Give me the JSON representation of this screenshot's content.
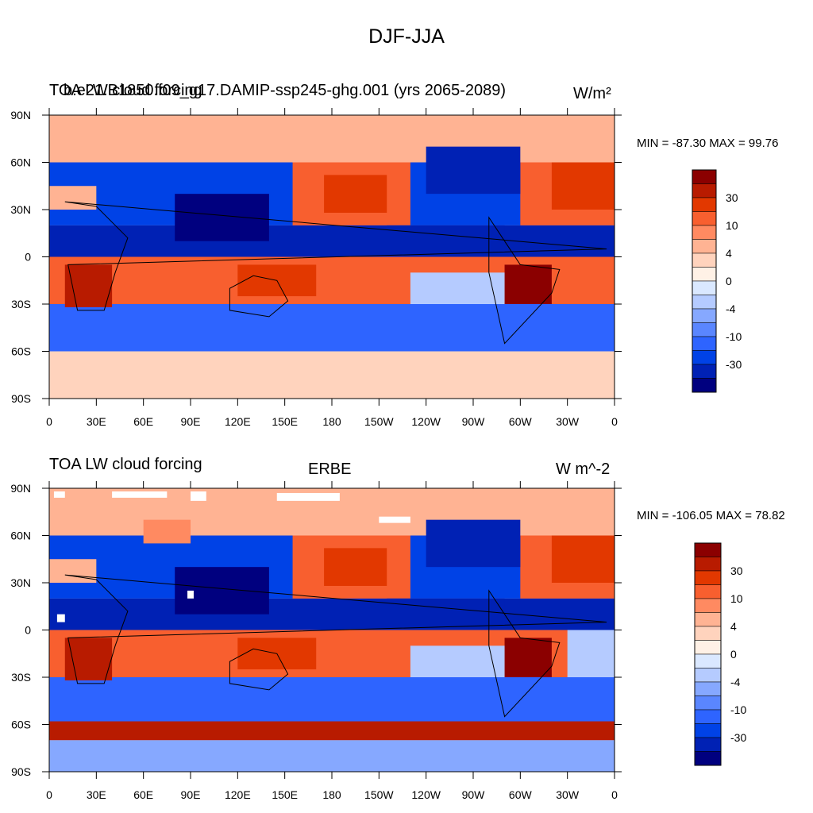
{
  "figure_title": "DJF-JJA",
  "colors": {
    "levels": [
      "#00007f",
      "#0021b4",
      "#0042e6",
      "#2e64ff",
      "#5a86ff",
      "#86a8ff",
      "#b5cbff",
      "#dae8ff",
      "#fff1e6",
      "#ffd3bd",
      "#ffb393",
      "#ff8a61",
      "#f85f2f",
      "#e23800",
      "#b81b00",
      "#8b0000"
    ]
  },
  "panels": [
    {
      "title_left": "TOA LW cloud forcing",
      "title_center": "b.e21.B1850.f09_g17.DAMIP-ssp245-ghg.001 (yrs 2065-2089)",
      "title_right": "W/m²",
      "min_max": "MIN = -87.30 MAX =  99.76",
      "colorbar_labels": [
        "30",
        "10",
        "4",
        "0",
        "-4",
        "-10",
        "-30"
      ]
    },
    {
      "title_left": "TOA LW cloud forcing",
      "title_center": "ERBE",
      "title_right": "W m^-2",
      "min_max": "MIN = -106.05 MAX =  78.82",
      "colorbar_labels": [
        "30",
        "10",
        "4",
        "0",
        "-4",
        "-10",
        "-30"
      ]
    }
  ],
  "axes": {
    "lat_labels": [
      "90N",
      "60N",
      "30N",
      "0",
      "30S",
      "60S",
      "90S"
    ],
    "lon_labels": [
      "0",
      "30E",
      "60E",
      "90E",
      "120E",
      "150E",
      "180",
      "150W",
      "120W",
      "90W",
      "60W",
      "30W",
      "0"
    ]
  },
  "chart_data": [
    {
      "type": "heatmap",
      "title": "DJF-JJA",
      "subtitle": "b.e21.B1850.f09_g17.DAMIP-ssp245-ghg.001 (yrs 2065-2089)",
      "variable": "TOA LW cloud forcing",
      "units": "W/m²",
      "min": -87.3,
      "max": 99.76,
      "contour_levels": [
        -30,
        -10,
        -4,
        0,
        4,
        10,
        30
      ],
      "x_range": [
        0,
        360
      ],
      "y_range": [
        -90,
        90
      ]
    },
    {
      "type": "heatmap",
      "title": "DJF-JJA",
      "subtitle": "ERBE",
      "variable": "TOA LW cloud forcing",
      "units": "W m^-2",
      "min": -106.05,
      "max": 78.82,
      "contour_levels": [
        -30,
        -10,
        -4,
        0,
        4,
        10,
        30
      ],
      "x_range": [
        0,
        360
      ],
      "y_range": [
        -90,
        90
      ]
    }
  ]
}
